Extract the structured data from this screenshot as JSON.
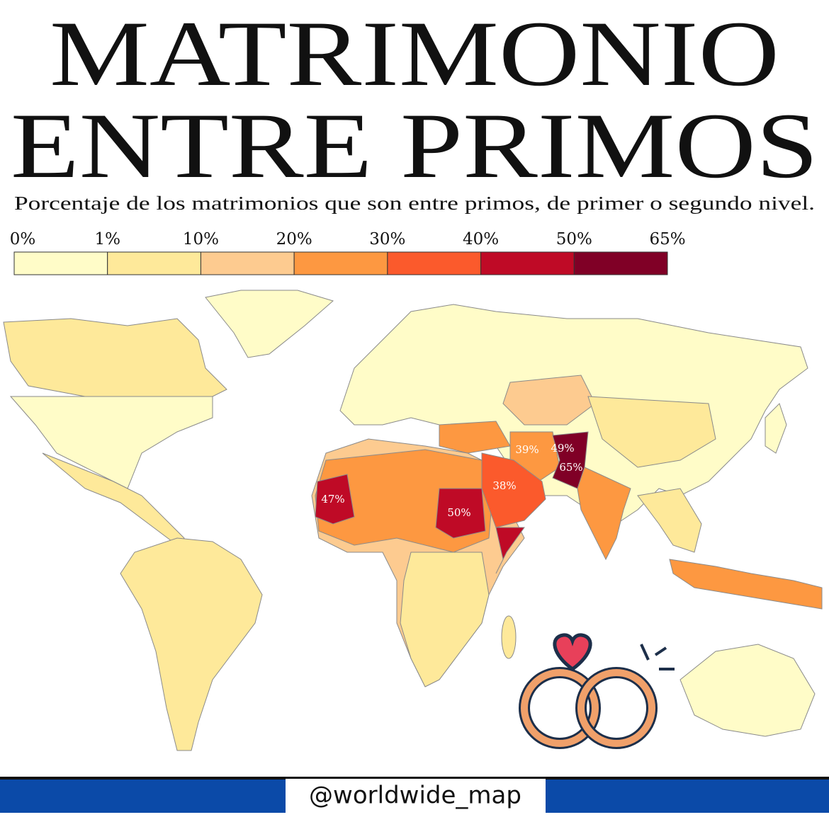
{
  "header": {
    "title_lines": [
      "MATRIMONIO",
      "ENTRE PRIMOS"
    ],
    "subtitle": "Porcentaje de los matrimonios que son entre primos, de primer o segundo nivel."
  },
  "legend": {
    "labels": [
      "0%",
      "1%",
      "10%",
      "20%",
      "30%",
      "40%",
      "50%",
      "65%"
    ],
    "colors": [
      "#fffcc8",
      "#fee99a",
      "#fdcb90",
      "#fd9841",
      "#fb5a2c",
      "#bf0a26",
      "#800026"
    ]
  },
  "map": {
    "labels": [
      "47%",
      "50%",
      "38%",
      "39%",
      "49%",
      "65%"
    ]
  },
  "footer": {
    "handle": "@worldwide_map"
  }
}
